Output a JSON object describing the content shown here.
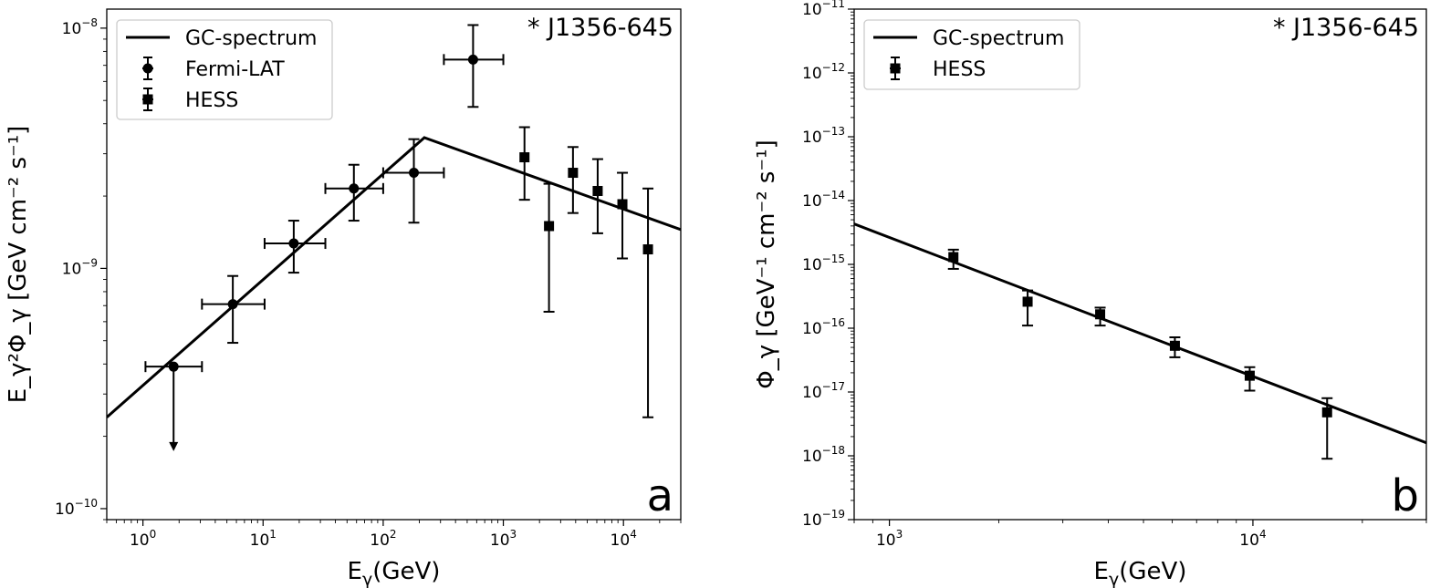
{
  "chart_data": [
    {
      "type": "line",
      "panel_label": "a",
      "source_label": "* J1356-645",
      "xlabel": "E_γ(GeV)",
      "ylabel": "E_γ²Φ_γ [GeV cm⁻² s⁻¹]",
      "xscale": "log",
      "yscale": "log",
      "xlim": [
        0.5,
        30000
      ],
      "ylim": [
        9e-11,
        1.2e-08
      ],
      "grid": false,
      "legend_position": "top-left",
      "x_ticks": [
        {
          "value": 1,
          "base": "10",
          "exp": "0"
        },
        {
          "value": 10,
          "base": "10",
          "exp": "1"
        },
        {
          "value": 100,
          "base": "10",
          "exp": "2"
        },
        {
          "value": 1000,
          "base": "10",
          "exp": "3"
        },
        {
          "value": 10000,
          "base": "10",
          "exp": "4"
        }
      ],
      "y_ticks": [
        {
          "value": 1e-10,
          "base": "10",
          "exp": "−10"
        },
        {
          "value": 1e-09,
          "base": "10",
          "exp": "−9"
        },
        {
          "value": 1e-08,
          "base": "10",
          "exp": "−8"
        }
      ],
      "model_line": {
        "name": "GC-spectrum",
        "x": [
          0.5,
          220,
          30000
        ],
        "y": [
          2.4e-10,
          3.5e-09,
          1.45e-09
        ]
      },
      "series": [
        {
          "name": "Fermi-LAT",
          "marker": "circle",
          "points": [
            {
              "x": 1.8,
              "y": 3.9e-10,
              "xlo": 1.05,
              "xhi": 3.1,
              "ylo": 1.75e-10,
              "yhi": 3.9e-10,
              "upper_limit": true
            },
            {
              "x": 5.6,
              "y": 7.1e-10,
              "xlo": 3.1,
              "xhi": 10.3,
              "ylo": 4.9e-10,
              "yhi": 9.3e-10
            },
            {
              "x": 18,
              "y": 1.27e-09,
              "xlo": 10.3,
              "xhi": 33,
              "ylo": 9.6e-10,
              "yhi": 1.58e-09
            },
            {
              "x": 57,
              "y": 2.15e-09,
              "xlo": 33,
              "xhi": 100,
              "ylo": 1.58e-09,
              "yhi": 2.7e-09
            },
            {
              "x": 180,
              "y": 2.5e-09,
              "xlo": 100,
              "xhi": 320,
              "ylo": 1.55e-09,
              "yhi": 3.45e-09
            },
            {
              "x": 560,
              "y": 7.4e-09,
              "xlo": 320,
              "xhi": 1000,
              "ylo": 4.7e-09,
              "yhi": 1.03e-08
            }
          ]
        },
        {
          "name": "HESS",
          "marker": "square",
          "points": [
            {
              "x": 1500,
              "y": 2.9e-09,
              "ylo": 1.93e-09,
              "yhi": 3.87e-09
            },
            {
              "x": 2400,
              "y": 1.5e-09,
              "ylo": 6.6e-10,
              "yhi": 2.25e-09
            },
            {
              "x": 3800,
              "y": 2.5e-09,
              "ylo": 1.7e-09,
              "yhi": 3.2e-09
            },
            {
              "x": 6100,
              "y": 2.1e-09,
              "ylo": 1.4e-09,
              "yhi": 2.85e-09
            },
            {
              "x": 9800,
              "y": 1.85e-09,
              "ylo": 1.1e-09,
              "yhi": 2.5e-09
            },
            {
              "x": 16000,
              "y": 1.2e-09,
              "ylo": 2.4e-10,
              "yhi": 2.15e-09
            }
          ]
        }
      ]
    },
    {
      "type": "line",
      "panel_label": "b",
      "source_label": "* J1356-645",
      "xlabel": "E_γ(GeV)",
      "ylabel": "Φ_γ [GeV⁻¹ cm⁻² s⁻¹]",
      "xscale": "log",
      "yscale": "log",
      "xlim": [
        800,
        30000
      ],
      "ylim": [
        1e-19,
        1e-11
      ],
      "grid": false,
      "legend_position": "top-left",
      "x_ticks": [
        {
          "value": 1000,
          "base": "10",
          "exp": "3"
        },
        {
          "value": 10000,
          "base": "10",
          "exp": "4"
        }
      ],
      "y_ticks": [
        {
          "value": 1e-19,
          "base": "10",
          "exp": "−19"
        },
        {
          "value": 1e-18,
          "base": "10",
          "exp": "−18"
        },
        {
          "value": 1e-17,
          "base": "10",
          "exp": "−17"
        },
        {
          "value": 1e-16,
          "base": "10",
          "exp": "−16"
        },
        {
          "value": 1e-15,
          "base": "10",
          "exp": "−15"
        },
        {
          "value": 1e-14,
          "base": "10",
          "exp": "−14"
        },
        {
          "value": 1e-13,
          "base": "10",
          "exp": "−13"
        },
        {
          "value": 1e-12,
          "base": "10",
          "exp": "−12"
        },
        {
          "value": 1e-11,
          "base": "10",
          "exp": "−11"
        }
      ],
      "model_line": {
        "name": "GC-spectrum",
        "x": [
          800,
          30000
        ],
        "y": [
          4.3e-15,
          1.6e-18
        ]
      },
      "series": [
        {
          "name": "HESS",
          "marker": "square",
          "points": [
            {
              "x": 1500,
              "y": 1.3e-15,
              "ylo": 8.5e-16,
              "yhi": 1.7e-15
            },
            {
              "x": 2400,
              "y": 2.6e-16,
              "ylo": 1.1e-16,
              "yhi": 3.9e-16
            },
            {
              "x": 3800,
              "y": 1.65e-16,
              "ylo": 1.1e-16,
              "yhi": 2.1e-16
            },
            {
              "x": 6100,
              "y": 5.3e-17,
              "ylo": 3.5e-17,
              "yhi": 7.2e-17
            },
            {
              "x": 9800,
              "y": 1.8e-17,
              "ylo": 1.05e-17,
              "yhi": 2.45e-17
            },
            {
              "x": 16000,
              "y": 4.8e-18,
              "ylo": 9e-19,
              "yhi": 8e-18
            }
          ]
        }
      ]
    }
  ]
}
